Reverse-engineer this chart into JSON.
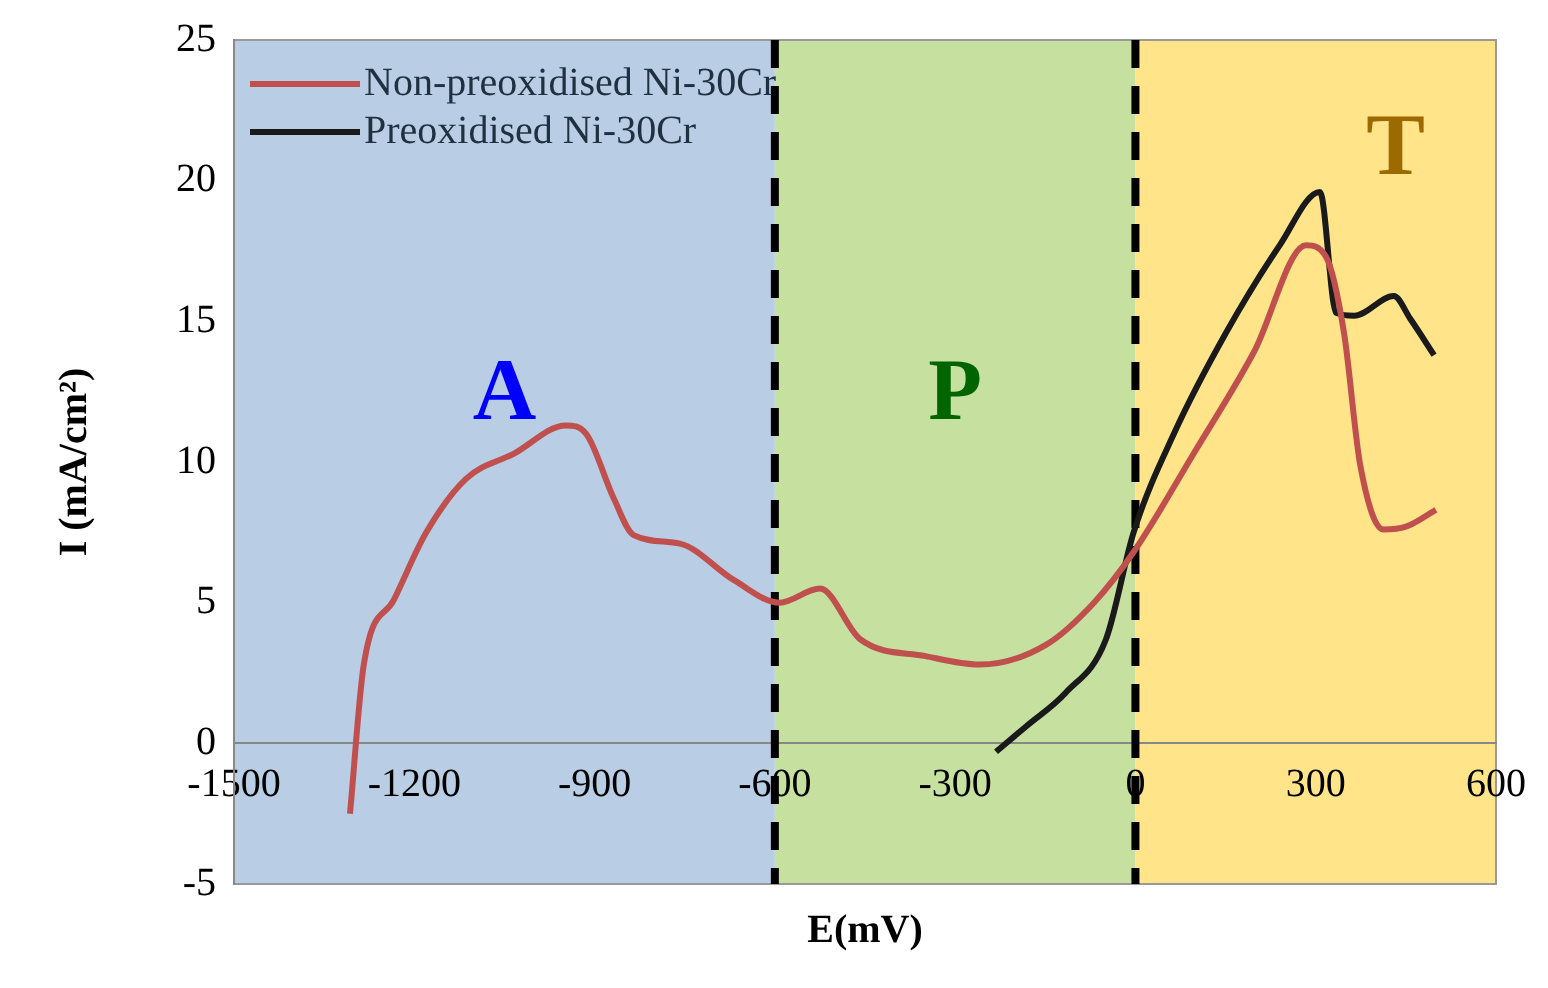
{
  "chart_data": {
    "type": "line",
    "xlabel": "E(mV)",
    "ylabel": "I (mA/cm²)",
    "xlim": [
      -1500,
      600
    ],
    "xticks": [
      -1500,
      -1200,
      -900,
      -600,
      -300,
      0,
      300,
      600
    ],
    "ylim": [
      -5,
      25
    ],
    "yticks": [
      -5,
      0,
      5,
      10,
      15,
      20,
      25
    ],
    "legend": "top left",
    "grid": false,
    "marker": "none",
    "series": [
      {
        "name": "Non-preoxidised Ni-30Cr",
        "color": "#c0504d",
        "x": [
          -1307,
          -1284,
          -1234,
          -1180,
          -1114,
          -1034,
          -948,
          -914,
          -868,
          -835,
          -758,
          -668,
          -592,
          -525,
          -458,
          -349,
          -259,
          -149,
          -69,
          -3,
          97,
          197,
          284,
          317,
          347,
          374,
          413,
          450,
          500
        ],
        "values": [
          -2.5,
          2.8,
          5.1,
          7.5,
          9.4,
          10.3,
          11.3,
          11.0,
          8.7,
          7.4,
          7.1,
          5.8,
          5.0,
          5.5,
          3.7,
          3.1,
          2.8,
          3.5,
          5.0,
          6.8,
          10.3,
          13.9,
          17.7,
          17.3,
          14.6,
          9.9,
          7.6,
          7.7,
          8.3
        ]
      },
      {
        "name": "Preoxidised Ni-30Cr",
        "color": "#1a1a1a",
        "x": [
          -232,
          -182,
          -116,
          -49,
          -3,
          64,
          151,
          240,
          307,
          334,
          364,
          430,
          457,
          497
        ],
        "values": [
          -0.3,
          0.6,
          1.8,
          3.7,
          7.5,
          11.0,
          14.6,
          17.7,
          19.6,
          15.3,
          15.2,
          15.9,
          15.1,
          13.8
        ]
      }
    ],
    "bands": [
      {
        "axis": "x",
        "from": -1500,
        "to": -600,
        "label": "A",
        "color": "#b9cde5"
      },
      {
        "axis": "x",
        "from": -600,
        "to": 0,
        "label": "P",
        "color": "#c6e0a0"
      },
      {
        "axis": "x",
        "from": 0,
        "to": 600,
        "label": "T",
        "color": "#ffe48a"
      }
    ],
    "ref_lines": [
      {
        "axis": "x",
        "value": -600,
        "color": "#000000",
        "line_style": "dashed"
      },
      {
        "axis": "x",
        "value": 0,
        "color": "#000000",
        "line_style": "dashed"
      }
    ]
  }
}
